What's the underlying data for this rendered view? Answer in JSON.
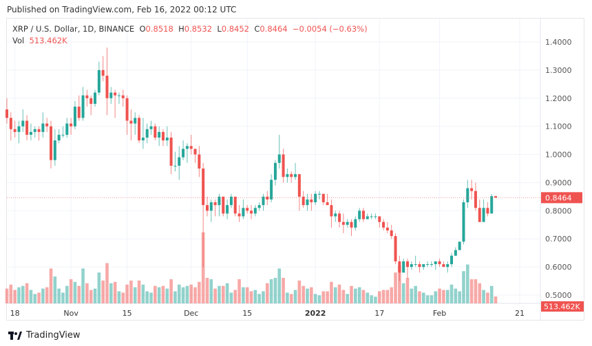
{
  "header": {
    "published": "Published on TradingView.com, Feb 16, 2022 00:12 UTC"
  },
  "legend": {
    "symbol": "XRP / U.S. Dollar, 1D, BINANCE",
    "o_label": "O",
    "o": "0.8518",
    "h_label": "H",
    "h": "0.8532",
    "l_label": "L",
    "l": "0.8452",
    "c_label": "C",
    "c": "0.8464",
    "change": "−0.0054 (−0.63%)",
    "vol_label": "Vol",
    "vol": "513.462K"
  },
  "footer": {
    "brand": "TradingView",
    "logo_icon": "tradingview-logo-icon"
  },
  "colors": {
    "up": "#26a69a",
    "down": "#ef5350",
    "grid": "#f0f3fa",
    "text": "#333333"
  },
  "chart_data": {
    "type": "candlestick",
    "title": "XRP / U.S. Dollar, 1D, BINANCE",
    "ylim": [
      0.5,
      1.4
    ],
    "y_ticks": [
      "1.4000",
      "1.3000",
      "1.2000",
      "1.1000",
      "1.0000",
      "0.9000",
      "0.8000",
      "0.7000",
      "0.6000",
      "0.5000"
    ],
    "x_ticks": [
      {
        "date": "2021-10-18",
        "label": "18"
      },
      {
        "date": "2021-11-01",
        "label": "Nov"
      },
      {
        "date": "2021-11-15",
        "label": "15"
      },
      {
        "date": "2021-12-01",
        "label": "Dec"
      },
      {
        "date": "2021-12-15",
        "label": "15"
      },
      {
        "date": "2022-01-01",
        "label": "2022"
      },
      {
        "date": "2022-01-17",
        "label": "17"
      },
      {
        "date": "2022-02-01",
        "label": "Feb"
      },
      {
        "date": "2022-02-21",
        "label": "21"
      }
    ],
    "last_price_label": "0.8464",
    "last_volume_label": "513.462K",
    "grid": true,
    "columns": [
      "date",
      "open",
      "high",
      "low",
      "close",
      "volume_k"
    ],
    "candles": [
      [
        "2021-10-16",
        1.16,
        1.2,
        1.11,
        1.13,
        1100
      ],
      [
        "2021-10-17",
        1.13,
        1.15,
        1.05,
        1.09,
        1400
      ],
      [
        "2021-10-18",
        1.09,
        1.12,
        1.06,
        1.08,
        1000
      ],
      [
        "2021-10-19",
        1.08,
        1.12,
        1.04,
        1.1,
        1200
      ],
      [
        "2021-10-20",
        1.1,
        1.16,
        1.08,
        1.12,
        1300
      ],
      [
        "2021-10-21",
        1.12,
        1.14,
        1.05,
        1.07,
        1500
      ],
      [
        "2021-10-22",
        1.07,
        1.11,
        1.05,
        1.08,
        1000
      ],
      [
        "2021-10-23",
        1.08,
        1.1,
        1.06,
        1.09,
        700
      ],
      [
        "2021-10-24",
        1.09,
        1.1,
        1.05,
        1.08,
        800
      ],
      [
        "2021-10-25",
        1.08,
        1.15,
        1.06,
        1.11,
        1100
      ],
      [
        "2021-10-26",
        1.11,
        1.13,
        1.08,
        1.1,
        1200
      ],
      [
        "2021-10-27",
        1.1,
        1.12,
        0.95,
        0.98,
        2600
      ],
      [
        "2021-10-28",
        0.98,
        1.09,
        0.96,
        1.05,
        2000
      ],
      [
        "2021-10-29",
        1.05,
        1.09,
        1.04,
        1.07,
        1100
      ],
      [
        "2021-10-30",
        1.07,
        1.1,
        1.06,
        1.07,
        800
      ],
      [
        "2021-10-31",
        1.07,
        1.13,
        1.06,
        1.11,
        1300
      ],
      [
        "2021-11-01",
        1.11,
        1.13,
        1.07,
        1.1,
        1800
      ],
      [
        "2021-11-02",
        1.1,
        1.19,
        1.09,
        1.17,
        1600
      ],
      [
        "2021-11-03",
        1.17,
        1.21,
        1.12,
        1.13,
        1300
      ],
      [
        "2021-11-04",
        1.13,
        1.24,
        1.12,
        1.21,
        2600
      ],
      [
        "2021-11-05",
        1.21,
        1.23,
        1.17,
        1.2,
        1500
      ],
      [
        "2021-11-06",
        1.2,
        1.21,
        1.14,
        1.18,
        1000
      ],
      [
        "2021-11-07",
        1.18,
        1.23,
        1.17,
        1.22,
        1100
      ],
      [
        "2021-11-08",
        1.22,
        1.33,
        1.21,
        1.3,
        2300
      ],
      [
        "2021-11-09",
        1.3,
        1.35,
        1.26,
        1.28,
        1700
      ],
      [
        "2021-11-10",
        1.28,
        1.38,
        1.14,
        1.2,
        3000
      ],
      [
        "2021-11-11",
        1.2,
        1.24,
        1.18,
        1.22,
        1500
      ],
      [
        "2021-11-12",
        1.22,
        1.23,
        1.13,
        1.21,
        1600
      ],
      [
        "2021-11-13",
        1.21,
        1.22,
        1.18,
        1.21,
        900
      ],
      [
        "2021-11-14",
        1.21,
        1.23,
        1.17,
        1.2,
        800
      ],
      [
        "2021-11-15",
        1.2,
        1.21,
        1.07,
        1.12,
        1400
      ],
      [
        "2021-11-16",
        1.12,
        1.16,
        1.05,
        1.11,
        1700
      ],
      [
        "2021-11-17",
        1.11,
        1.15,
        1.07,
        1.13,
        1200
      ],
      [
        "2021-11-18",
        1.13,
        1.14,
        1.04,
        1.05,
        1700
      ],
      [
        "2021-11-19",
        1.05,
        1.13,
        1.02,
        1.06,
        1400
      ],
      [
        "2021-11-20",
        1.06,
        1.11,
        1.04,
        1.09,
        900
      ],
      [
        "2021-11-21",
        1.09,
        1.12,
        1.07,
        1.1,
        800
      ],
      [
        "2021-11-22",
        1.1,
        1.11,
        1.05,
        1.06,
        1300
      ],
      [
        "2021-11-23",
        1.06,
        1.1,
        1.03,
        1.08,
        1200
      ],
      [
        "2021-11-24",
        1.08,
        1.09,
        1.03,
        1.05,
        1300
      ],
      [
        "2021-11-25",
        1.05,
        1.1,
        1.03,
        1.06,
        1100
      ],
      [
        "2021-11-26",
        1.06,
        1.08,
        0.93,
        0.96,
        1800
      ],
      [
        "2021-11-27",
        0.96,
        1.01,
        0.94,
        0.96,
        900
      ],
      [
        "2021-11-28",
        0.96,
        1.03,
        0.91,
        0.99,
        1400
      ],
      [
        "2021-11-29",
        0.99,
        1.05,
        0.98,
        1.02,
        1200
      ],
      [
        "2021-11-30",
        1.02,
        1.04,
        0.97,
        1.03,
        1300
      ],
      [
        "2021-12-01",
        1.03,
        1.07,
        1.0,
        1.02,
        1400
      ],
      [
        "2021-12-02",
        1.02,
        1.02,
        0.97,
        1.0,
        1200
      ],
      [
        "2021-12-03",
        1.0,
        1.03,
        0.92,
        0.95,
        1600
      ],
      [
        "2021-12-04",
        0.95,
        0.97,
        0.6,
        0.82,
        5300
      ],
      [
        "2021-12-05",
        0.82,
        0.85,
        0.78,
        0.8,
        1900
      ],
      [
        "2021-12-06",
        0.8,
        0.84,
        0.76,
        0.83,
        1800
      ],
      [
        "2021-12-07",
        0.83,
        0.84,
        0.78,
        0.82,
        1100
      ],
      [
        "2021-12-08",
        0.82,
        0.86,
        0.78,
        0.85,
        1300
      ],
      [
        "2021-12-09",
        0.85,
        0.85,
        0.78,
        0.79,
        1300
      ],
      [
        "2021-12-10",
        0.79,
        0.84,
        0.77,
        0.82,
        1500
      ],
      [
        "2021-12-11",
        0.82,
        0.86,
        0.81,
        0.85,
        800
      ],
      [
        "2021-12-12",
        0.85,
        0.85,
        0.78,
        0.79,
        1000
      ],
      [
        "2021-12-13",
        0.79,
        0.82,
        0.76,
        0.78,
        1800
      ],
      [
        "2021-12-14",
        0.78,
        0.84,
        0.77,
        0.81,
        1200
      ],
      [
        "2021-12-15",
        0.81,
        0.82,
        0.79,
        0.8,
        1200
      ],
      [
        "2021-12-16",
        0.8,
        0.82,
        0.77,
        0.79,
        900
      ],
      [
        "2021-12-17",
        0.79,
        0.82,
        0.78,
        0.81,
        1000
      ],
      [
        "2021-12-18",
        0.81,
        0.83,
        0.8,
        0.82,
        700
      ],
      [
        "2021-12-19",
        0.82,
        0.86,
        0.8,
        0.85,
        900
      ],
      [
        "2021-12-20",
        0.85,
        0.87,
        0.82,
        0.84,
        1500
      ],
      [
        "2021-12-21",
        0.84,
        0.93,
        0.83,
        0.91,
        1800
      ],
      [
        "2021-12-22",
        0.91,
        0.98,
        0.89,
        0.97,
        1900
      ],
      [
        "2021-12-23",
        0.97,
        1.07,
        0.95,
        1.0,
        2600
      ],
      [
        "2021-12-24",
        1.0,
        1.02,
        0.9,
        0.92,
        1900
      ],
      [
        "2021-12-25",
        0.92,
        0.95,
        0.9,
        0.93,
        800
      ],
      [
        "2021-12-26",
        0.93,
        0.94,
        0.9,
        0.92,
        700
      ],
      [
        "2021-12-27",
        0.92,
        0.97,
        0.91,
        0.93,
        1000
      ],
      [
        "2021-12-28",
        0.93,
        0.93,
        0.8,
        0.85,
        1700
      ],
      [
        "2021-12-29",
        0.85,
        0.87,
        0.81,
        0.82,
        1300
      ],
      [
        "2021-12-30",
        0.82,
        0.86,
        0.8,
        0.84,
        1100
      ],
      [
        "2021-12-31",
        0.84,
        0.86,
        0.8,
        0.83,
        1200
      ],
      [
        "2022-01-01",
        0.83,
        0.87,
        0.82,
        0.86,
        700
      ],
      [
        "2022-01-02",
        0.86,
        0.87,
        0.84,
        0.86,
        600
      ],
      [
        "2022-01-03",
        0.86,
        0.86,
        0.82,
        0.83,
        900
      ],
      [
        "2022-01-04",
        0.83,
        0.86,
        0.82,
        0.82,
        900
      ],
      [
        "2022-01-05",
        0.82,
        0.84,
        0.74,
        0.78,
        1600
      ],
      [
        "2022-01-06",
        0.78,
        0.8,
        0.76,
        0.79,
        1200
      ],
      [
        "2022-01-07",
        0.79,
        0.8,
        0.74,
        0.76,
        1400
      ],
      [
        "2022-01-08",
        0.76,
        0.79,
        0.72,
        0.75,
        1000
      ],
      [
        "2022-01-09",
        0.75,
        0.77,
        0.74,
        0.76,
        700
      ],
      [
        "2022-01-10",
        0.76,
        0.77,
        0.71,
        0.74,
        1300
      ],
      [
        "2022-01-11",
        0.74,
        0.78,
        0.73,
        0.77,
        1100
      ],
      [
        "2022-01-12",
        0.77,
        0.81,
        0.76,
        0.8,
        1200
      ],
      [
        "2022-01-13",
        0.8,
        0.81,
        0.76,
        0.77,
        1000
      ],
      [
        "2022-01-14",
        0.77,
        0.79,
        0.77,
        0.78,
        800
      ],
      [
        "2022-01-15",
        0.78,
        0.79,
        0.77,
        0.78,
        600
      ],
      [
        "2022-01-16",
        0.78,
        0.79,
        0.77,
        0.78,
        500
      ],
      [
        "2022-01-17",
        0.78,
        0.78,
        0.74,
        0.76,
        900
      ],
      [
        "2022-01-18",
        0.76,
        0.77,
        0.73,
        0.74,
        1000
      ],
      [
        "2022-01-19",
        0.74,
        0.76,
        0.72,
        0.73,
        1000
      ],
      [
        "2022-01-20",
        0.73,
        0.75,
        0.7,
        0.71,
        1200
      ],
      [
        "2022-01-21",
        0.71,
        0.72,
        0.61,
        0.62,
        2300
      ],
      [
        "2022-01-22",
        0.62,
        0.64,
        0.55,
        0.58,
        2800
      ],
      [
        "2022-01-23",
        0.58,
        0.63,
        0.58,
        0.62,
        1500
      ],
      [
        "2022-01-24",
        0.62,
        0.63,
        0.56,
        0.6,
        1900
      ],
      [
        "2022-01-25",
        0.6,
        0.62,
        0.59,
        0.61,
        1100
      ],
      [
        "2022-01-26",
        0.61,
        0.64,
        0.6,
        0.61,
        1300
      ],
      [
        "2022-01-27",
        0.61,
        0.62,
        0.58,
        0.6,
        900
      ],
      [
        "2022-01-28",
        0.6,
        0.61,
        0.59,
        0.61,
        800
      ],
      [
        "2022-01-29",
        0.61,
        0.62,
        0.6,
        0.61,
        600
      ],
      [
        "2022-01-30",
        0.61,
        0.62,
        0.6,
        0.61,
        600
      ],
      [
        "2022-01-31",
        0.61,
        0.62,
        0.59,
        0.62,
        900
      ],
      [
        "2022-02-01",
        0.62,
        0.63,
        0.6,
        0.61,
        1100
      ],
      [
        "2022-02-02",
        0.61,
        0.62,
        0.6,
        0.6,
        1000
      ],
      [
        "2022-02-03",
        0.6,
        0.62,
        0.58,
        0.61,
        1000
      ],
      [
        "2022-02-04",
        0.61,
        0.65,
        0.6,
        0.64,
        1400
      ],
      [
        "2022-02-05",
        0.64,
        0.67,
        0.64,
        0.66,
        1100
      ],
      [
        "2022-02-06",
        0.66,
        0.69,
        0.66,
        0.69,
        900
      ],
      [
        "2022-02-07",
        0.69,
        0.84,
        0.68,
        0.83,
        2400
      ],
      [
        "2022-02-08",
        0.83,
        0.91,
        0.81,
        0.88,
        2900
      ],
      [
        "2022-02-09",
        0.88,
        0.91,
        0.84,
        0.87,
        1800
      ],
      [
        "2022-02-10",
        0.87,
        0.9,
        0.8,
        0.81,
        1800
      ],
      [
        "2022-02-11",
        0.81,
        0.84,
        0.76,
        0.76,
        1500
      ],
      [
        "2022-02-12",
        0.76,
        0.84,
        0.76,
        0.81,
        1000
      ],
      [
        "2022-02-13",
        0.81,
        0.83,
        0.78,
        0.79,
        800
      ],
      [
        "2022-02-14",
        0.79,
        0.86,
        0.79,
        0.8518,
        1300
      ],
      [
        "2022-02-15",
        0.8518,
        0.8532,
        0.8452,
        0.8464,
        513.462
      ]
    ]
  }
}
